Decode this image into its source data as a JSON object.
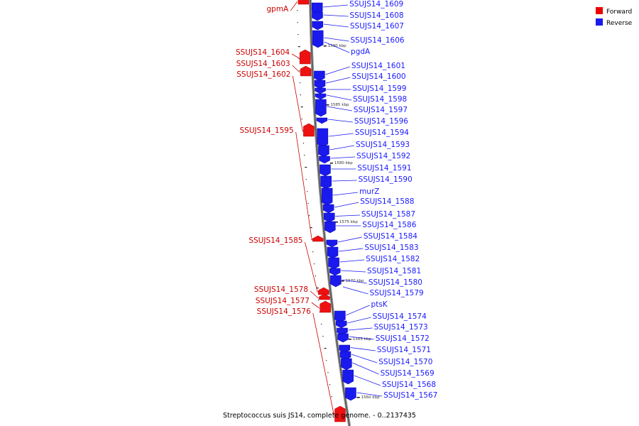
{
  "caption": "Streptococcus suis JS14, complete genome. - 0..2137435",
  "legend": [
    {
      "label": "Forward",
      "color": "#ee0000"
    },
    {
      "label": "Reverse",
      "color": "#1a1aee"
    }
  ],
  "scale_ticks": [
    "1590 kbp",
    "1585 kbp",
    "1580 kbp",
    "1575 kbp",
    "1570 kbp",
    "1565 kbp",
    "1560 kbp"
  ],
  "forward_genes": [
    "gpmA",
    "SSUJS14_1604",
    "SSUJS14_1603",
    "SSUJS14_1602",
    "SSUJS14_1595",
    "SSUJS14_1585",
    "SSUJS14_1578",
    "SSUJS14_1577",
    "SSUJS14_1576"
  ],
  "reverse_genes": [
    "SSUJS14_1609",
    "SSUJS14_1608",
    "SSUJS14_1607",
    "SSUJS14_1606",
    "pgdA",
    "SSUJS14_1601",
    "SSUJS14_1600",
    "SSUJS14_1599",
    "SSUJS14_1598",
    "SSUJS14_1597",
    "SSUJS14_1596",
    "SSUJS14_1594",
    "SSUJS14_1593",
    "SSUJS14_1592",
    "SSUJS14_1591",
    "SSUJS14_1590",
    "murZ",
    "SSUJS14_1588",
    "SSUJS14_1587",
    "SSUJS14_1586",
    "SSUJS14_1584",
    "SSUJS14_1583",
    "SSUJS14_1582",
    "SSUJS14_1581",
    "SSUJS14_1580",
    "SSUJS14_1579",
    "ptsK",
    "SSUJS14_1574",
    "SSUJS14_1573",
    "SSUJS14_1572",
    "SSUJS14_1571",
    "SSUJS14_1570",
    "SSUJS14_1569",
    "SSUJS14_1568",
    "SSUJS14_1567"
  ]
}
